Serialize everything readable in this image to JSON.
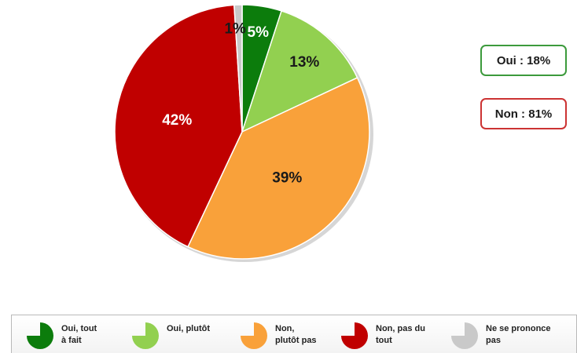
{
  "chart_data": {
    "type": "pie",
    "title": "",
    "slices": [
      {
        "label": "Oui, tout à fait",
        "value": 5,
        "value_label": "5%",
        "color": "#0c7c0c",
        "label_color": "#ffffff"
      },
      {
        "label": "Oui, plutôt",
        "value": 13,
        "value_label": "13%",
        "color": "#92d050",
        "label_color": "#1a1a1a"
      },
      {
        "label": "Non, plutôt pas",
        "value": 39,
        "value_label": "39%",
        "color": "#f9a13a",
        "label_color": "#1a1a1a"
      },
      {
        "label": "Non, pas du tout",
        "value": 42,
        "value_label": "42%",
        "color": "#c00000",
        "label_color": "#ffffff"
      },
      {
        "label": "Ne se prononce pas",
        "value": 1,
        "value_label": "1%",
        "color": "#c9c9c9",
        "label_color": "#1a1a1a"
      }
    ],
    "legend_position": "bottom",
    "summary": {
      "yes": "Oui : 18%",
      "no": "Non : 81%"
    }
  },
  "legend": {
    "items": [
      {
        "label": "Oui, tout\nà fait",
        "color": "#0c7c0c"
      },
      {
        "label": "Oui, plutôt",
        "color": "#92d050"
      },
      {
        "label": "Non,\nplutôt pas",
        "color": "#f9a13a"
      },
      {
        "label": "Non, pas du\ntout",
        "color": "#c00000"
      },
      {
        "label": "Ne se  prononce\npas",
        "color": "#c9c9c9"
      }
    ]
  }
}
